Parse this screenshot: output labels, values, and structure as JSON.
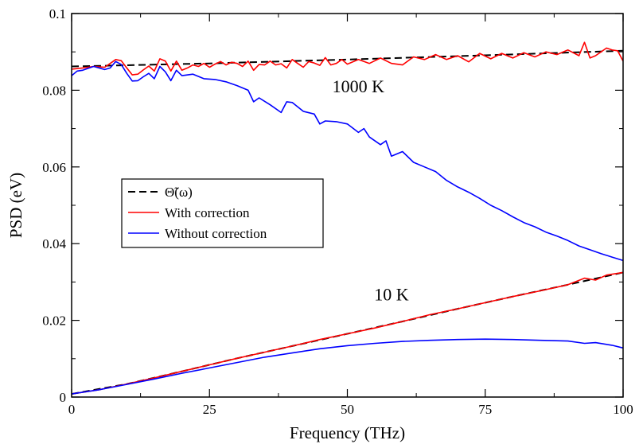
{
  "chart_data": {
    "type": "line",
    "xlabel": "Frequency (THz)",
    "ylabel": "PSD (eV)",
    "xlim": [
      0,
      100
    ],
    "ylim": [
      0,
      0.1
    ],
    "xticks": [
      0,
      25,
      50,
      75,
      100
    ],
    "yticks": [
      0,
      0.02,
      0.04,
      0.06,
      0.08,
      0.1
    ],
    "xtick_labels": [
      "0",
      "25",
      "50",
      "75",
      "100"
    ],
    "ytick_labels": [
      "0",
      "0.02",
      "0.04",
      "0.06",
      "0.08",
      "0.1"
    ],
    "grid": false,
    "legend_position": "middle-left",
    "annotations": [
      {
        "text": "1000 K",
        "x": 52,
        "y": 0.0795
      },
      {
        "text": "10 K",
        "x": 58,
        "y": 0.0252
      }
    ],
    "series": [
      {
        "name": "Θ̃(ω)",
        "legend_label": "Θ̃(ω)",
        "color": "#000000",
        "dash": true,
        "group": "1000 K",
        "x": [
          0,
          25,
          50,
          75,
          100
        ],
        "y": [
          0.0862,
          0.087,
          0.088,
          0.0891,
          0.0903
        ]
      },
      {
        "name": "With correction",
        "color": "#ff0000",
        "dash": false,
        "group": "1000 K",
        "x": [
          0,
          2,
          4,
          6,
          7,
          8,
          9,
          10,
          11,
          12,
          13,
          14,
          15,
          16,
          17,
          18,
          19,
          20,
          21,
          22,
          23,
          24,
          25,
          26,
          27,
          28,
          29,
          30,
          31,
          32,
          33,
          34,
          35,
          36,
          37,
          38,
          39,
          40,
          41,
          42,
          43,
          44,
          45,
          46,
          47,
          48,
          49,
          50,
          52,
          54,
          56,
          58,
          60,
          62,
          64,
          66,
          68,
          70,
          72,
          74,
          76,
          78,
          80,
          82,
          84,
          86,
          88,
          90,
          92,
          93,
          94,
          95,
          96,
          97,
          98,
          99,
          100
        ],
        "y": [
          0.0855,
          0.0858,
          0.0862,
          0.086,
          0.087,
          0.088,
          0.0877,
          0.0858,
          0.084,
          0.0842,
          0.0853,
          0.0863,
          0.085,
          0.0882,
          0.0876,
          0.085,
          0.0876,
          0.0852,
          0.0858,
          0.0866,
          0.0862,
          0.087,
          0.086,
          0.0868,
          0.0875,
          0.0866,
          0.0873,
          0.087,
          0.0862,
          0.0876,
          0.0852,
          0.0867,
          0.0866,
          0.0876,
          0.0866,
          0.0869,
          0.0858,
          0.088,
          0.087,
          0.086,
          0.0875,
          0.0871,
          0.0865,
          0.0885,
          0.0866,
          0.087,
          0.088,
          0.0868,
          0.088,
          0.087,
          0.0884,
          0.087,
          0.0866,
          0.0887,
          0.088,
          0.0893,
          0.088,
          0.089,
          0.0874,
          0.0896,
          0.0882,
          0.0896,
          0.0884,
          0.0898,
          0.0887,
          0.09,
          0.0893,
          0.0905,
          0.089,
          0.0925,
          0.0884,
          0.089,
          0.09,
          0.091,
          0.0905,
          0.0903,
          0.0876
        ]
      },
      {
        "name": "Without correction",
        "color": "#0000ff",
        "dash": false,
        "group": "1000 K",
        "x": [
          0,
          1,
          2,
          4,
          6,
          7,
          8,
          9,
          10,
          11,
          12,
          13,
          14,
          15,
          16,
          17,
          18,
          19,
          20,
          22,
          24,
          26,
          28,
          30,
          32,
          33,
          34,
          36,
          38,
          39,
          40,
          42,
          44,
          45,
          46,
          48,
          50,
          52,
          53,
          54,
          56,
          57,
          58,
          60,
          62,
          64,
          66,
          68,
          70,
          72,
          74,
          76,
          78,
          80,
          82,
          84,
          86,
          88,
          90,
          92,
          94,
          96,
          98,
          100
        ],
        "y": [
          0.0838,
          0.085,
          0.0852,
          0.0862,
          0.0854,
          0.0858,
          0.0875,
          0.0867,
          0.0844,
          0.0824,
          0.0825,
          0.0835,
          0.0844,
          0.083,
          0.0862,
          0.0848,
          0.0825,
          0.0852,
          0.0838,
          0.0842,
          0.083,
          0.0828,
          0.0822,
          0.0812,
          0.08,
          0.077,
          0.078,
          0.0762,
          0.0742,
          0.077,
          0.0768,
          0.0745,
          0.0738,
          0.0712,
          0.072,
          0.0718,
          0.0712,
          0.069,
          0.07,
          0.0678,
          0.0658,
          0.0668,
          0.0628,
          0.064,
          0.0612,
          0.06,
          0.0588,
          0.0565,
          0.0548,
          0.0534,
          0.0518,
          0.05,
          0.0486,
          0.047,
          0.0455,
          0.0444,
          0.043,
          0.042,
          0.0408,
          0.0394,
          0.0384,
          0.0374,
          0.0365,
          0.0356
        ]
      },
      {
        "name": "Θ̃(ω) 10 K",
        "color": "#000000",
        "dash": true,
        "group": "10 K",
        "x": [
          0,
          10,
          20,
          30,
          40,
          50,
          60,
          70,
          80,
          90,
          100
        ],
        "y": [
          0.0008,
          0.0034,
          0.0067,
          0.0101,
          0.0133,
          0.0165,
          0.0197,
          0.023,
          0.0262,
          0.0293,
          0.0325
        ]
      },
      {
        "name": "With correction 10 K",
        "color": "#ff0000",
        "dash": false,
        "group": "10 K",
        "x": [
          0,
          5,
          10,
          15,
          20,
          25,
          30,
          35,
          40,
          45,
          50,
          55,
          60,
          65,
          70,
          75,
          80,
          85,
          90,
          93,
          95,
          97,
          100
        ],
        "y": [
          0.0008,
          0.0019,
          0.0034,
          0.005,
          0.0067,
          0.0084,
          0.0101,
          0.0117,
          0.0133,
          0.015,
          0.0165,
          0.018,
          0.0197,
          0.0215,
          0.023,
          0.0246,
          0.0262,
          0.0277,
          0.0293,
          0.031,
          0.0305,
          0.0318,
          0.0325
        ]
      },
      {
        "name": "Without correction 10 K",
        "color": "#0000ff",
        "dash": false,
        "group": "10 K",
        "x": [
          0,
          5,
          10,
          15,
          20,
          25,
          30,
          35,
          40,
          45,
          50,
          55,
          60,
          65,
          70,
          75,
          80,
          85,
          90,
          93,
          95,
          98,
          100
        ],
        "y": [
          0.0008,
          0.0019,
          0.0033,
          0.0047,
          0.0062,
          0.0076,
          0.009,
          0.0104,
          0.0115,
          0.0126,
          0.0134,
          0.014,
          0.0145,
          0.0148,
          0.015,
          0.0151,
          0.015,
          0.0148,
          0.0146,
          0.014,
          0.0142,
          0.0135,
          0.0128
        ]
      }
    ],
    "legend": [
      {
        "label": "Θ̃(ω)",
        "color": "#000000",
        "dash": true
      },
      {
        "label": "With correction",
        "color": "#ff0000",
        "dash": false
      },
      {
        "label": "Without correction",
        "color": "#0000ff",
        "dash": false
      }
    ]
  }
}
